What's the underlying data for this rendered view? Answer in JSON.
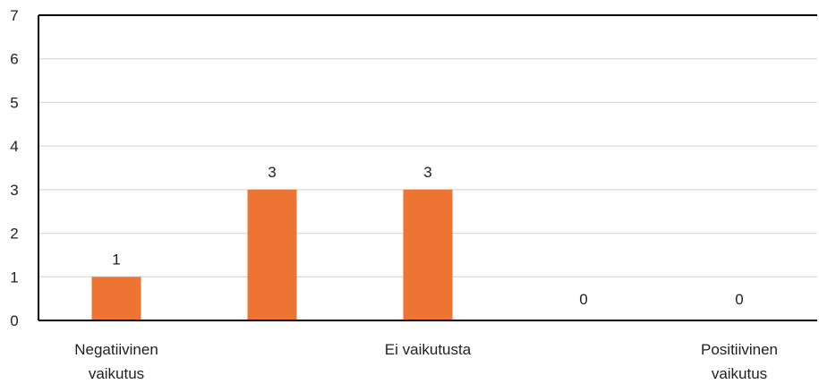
{
  "chart_data": {
    "type": "bar",
    "categories": [
      [
        "Negatiivinen",
        "vaikutus"
      ],
      [
        ""
      ],
      [
        "Ei vaikutusta"
      ],
      [
        ""
      ],
      [
        "Positiivinen",
        "vaikutus"
      ]
    ],
    "values": [
      1,
      3,
      3,
      0,
      0
    ],
    "ylim": [
      0,
      7
    ],
    "yticks": [
      0,
      1,
      2,
      3,
      4,
      5,
      6,
      7
    ],
    "grid": true,
    "bar_color": "#ED7433",
    "grid_color": "#D9D9D9",
    "axis_color": "#000000",
    "show_data_labels": true
  }
}
